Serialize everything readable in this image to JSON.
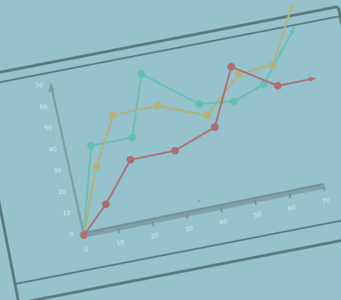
{
  "chart_data": {
    "type": "line",
    "title": "",
    "xlabel": "",
    "ylabel": "",
    "x_ticks": [
      "0",
      "10",
      "20",
      "30",
      "40",
      "50",
      "60",
      "70"
    ],
    "y_ticks": [
      "0",
      "10",
      "20",
      "30",
      "40",
      "50",
      "60",
      "70"
    ],
    "xlim": [
      0,
      70
    ],
    "ylim": [
      0,
      70
    ],
    "grid": false,
    "legend": "none",
    "series": [
      {
        "color": "#66bfb0",
        "x": [
          0,
          4,
          16,
          20,
          36,
          46,
          55,
          65
        ],
        "y": [
          0,
          40,
          40,
          68,
          49,
          47,
          52,
          75
        ]
      },
      {
        "color": "#b3b27c",
        "x": [
          0,
          5,
          11,
          24,
          38,
          48,
          58,
          65
        ],
        "y": [
          0,
          30,
          52,
          52,
          43,
          59,
          60,
          86
        ]
      },
      {
        "color": "#ad6f72",
        "x": [
          0,
          7,
          15,
          28,
          40,
          46,
          59,
          70
        ],
        "y": [
          0,
          12,
          30,
          30,
          37,
          63,
          50,
          50
        ]
      }
    ]
  }
}
